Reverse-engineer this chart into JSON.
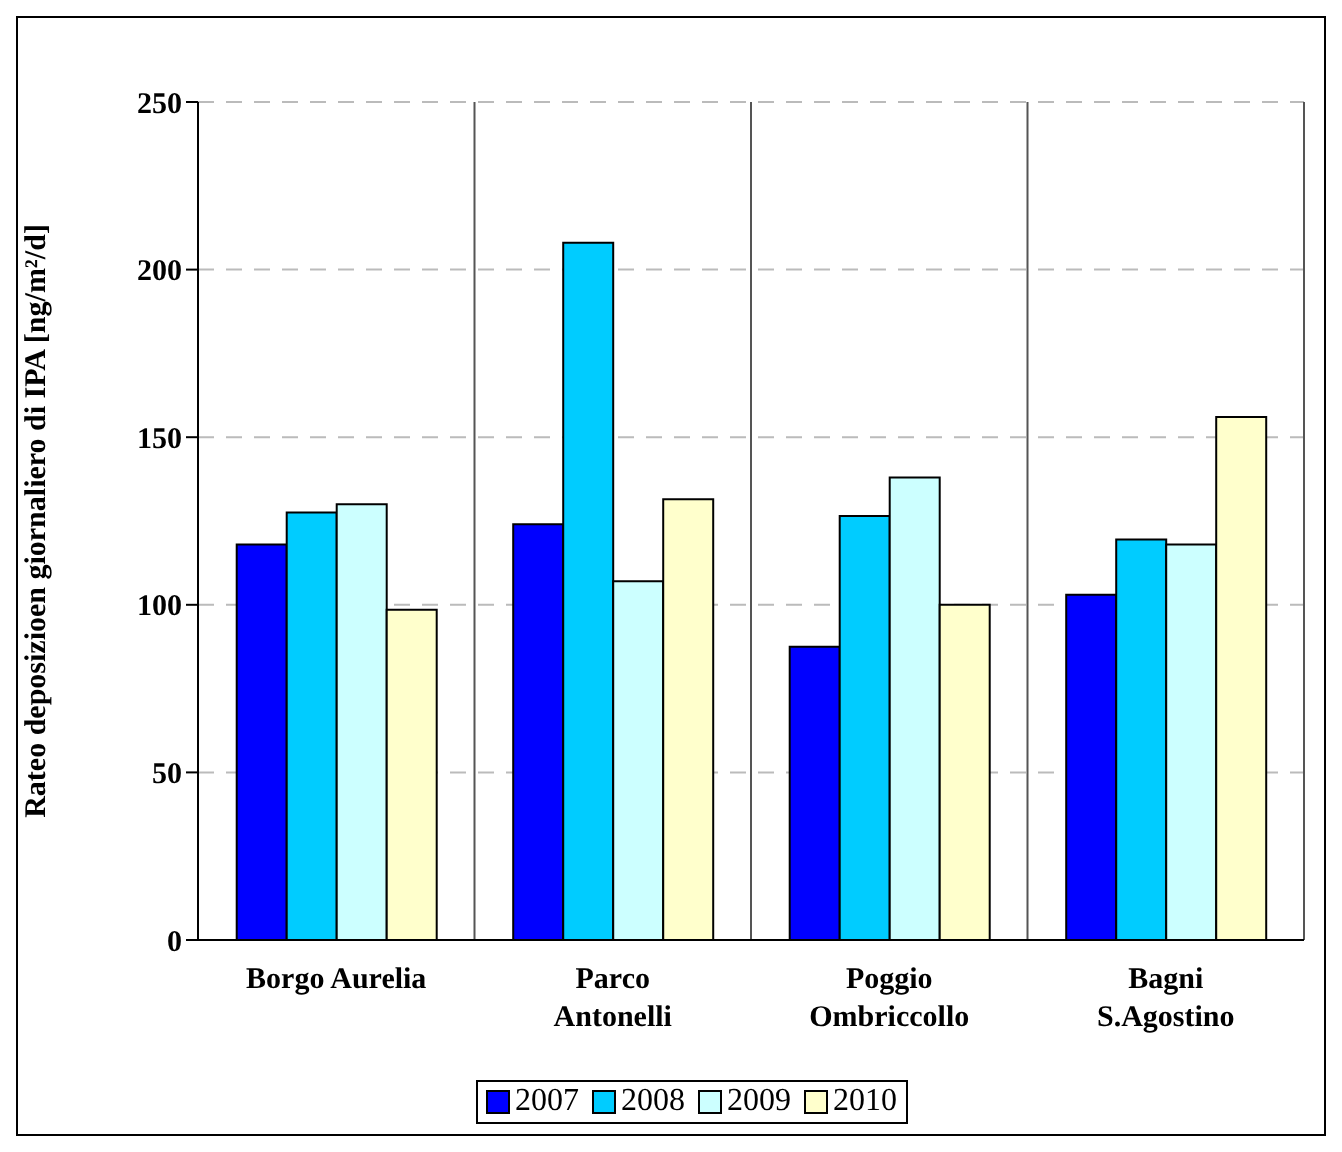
{
  "chart_data": {
    "type": "bar",
    "ylabel": "Rateo deposizioen giornaliero di IPA [ng/m²/d]",
    "categories": [
      "Borgo Aurelia",
      "Parco Antonelli",
      "Poggio Ombriccollo",
      "Bagni S.Agostino"
    ],
    "series": [
      {
        "name": "2007",
        "color": "#0000ff",
        "values": [
          118,
          124,
          87.5,
          103
        ]
      },
      {
        "name": "2008",
        "color": "#00ccff",
        "values": [
          127.5,
          208,
          126.5,
          119.5
        ]
      },
      {
        "name": "2009",
        "color": "#ccffff",
        "values": [
          130,
          107,
          138,
          118
        ]
      },
      {
        "name": "2010",
        "color": "#ffffcc",
        "values": [
          98.5,
          131.5,
          100,
          156
        ]
      }
    ],
    "ylim": [
      0,
      250
    ],
    "yticks": [
      0,
      50,
      100,
      150,
      200,
      250
    ],
    "grid": true,
    "legend": "bottom"
  }
}
